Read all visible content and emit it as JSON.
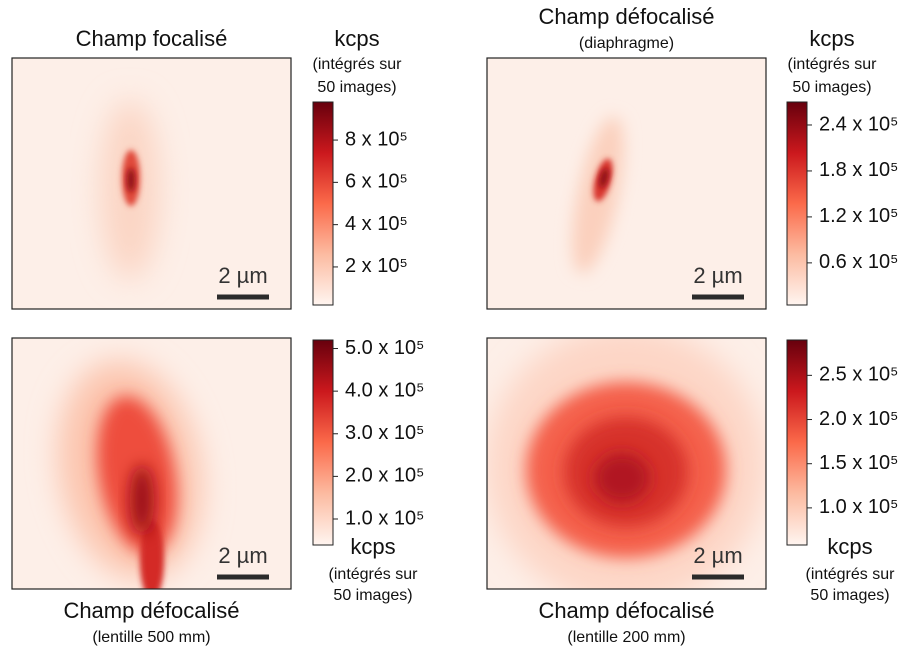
{
  "chart_data": [
    {
      "type": "heatmap",
      "title": "Champ focalisé",
      "colorbar_label": [
        "kcps",
        "(intégrés sur",
        "50 images)"
      ],
      "scale_bar": "2 µm",
      "colorbar_lim": [
        20000,
        980000
      ],
      "colorbar_ticks": [
        {
          "value": 200000,
          "label": "2 x 10⁵"
        },
        {
          "value": 400000,
          "label": "4 x 10⁵"
        },
        {
          "value": 600000,
          "label": "6 x 10⁵"
        },
        {
          "value": 800000,
          "label": "8 x 10⁵"
        }
      ]
    },
    {
      "type": "heatmap",
      "title": "Champ défocalisé",
      "subtitle": "(diaphragme)",
      "colorbar_label": [
        "kcps",
        "(intégrés sur",
        "50 images)"
      ],
      "scale_bar": "2 µm",
      "colorbar_lim": [
        5000,
        270000
      ],
      "colorbar_ticks": [
        {
          "value": 60000,
          "label": "0.6 x 10⁵"
        },
        {
          "value": 120000,
          "label": "1.2 x 10⁵"
        },
        {
          "value": 180000,
          "label": "1.8 x 10⁵"
        },
        {
          "value": 240000,
          "label": "2.4 x 10⁵"
        }
      ]
    },
    {
      "type": "heatmap",
      "title": "Champ défocalisé",
      "subtitle": "(lentille 500 mm)",
      "colorbar_label": [
        "kcps",
        "(intégrés sur",
        "50 images)"
      ],
      "scale_bar": "2 µm",
      "colorbar_lim": [
        39000,
        520000
      ],
      "colorbar_ticks": [
        {
          "value": 100000,
          "label": "1.0 x 10⁵"
        },
        {
          "value": 200000,
          "label": "2.0 x 10⁵"
        },
        {
          "value": 300000,
          "label": "3.0 x 10⁵"
        },
        {
          "value": 400000,
          "label": "4.0 x 10⁵"
        },
        {
          "value": 500000,
          "label": "5.0 x 10⁵"
        }
      ]
    },
    {
      "type": "heatmap",
      "title": "Champ défocalisé",
      "subtitle": "(lentille 200 mm)",
      "colorbar_label": [
        "kcps",
        "(intégrés sur",
        "50 images)"
      ],
      "scale_bar": "2 µm",
      "colorbar_lim": [
        58000,
        290000
      ],
      "colorbar_ticks": [
        {
          "value": 100000,
          "label": "1.0 x 10⁵"
        },
        {
          "value": 150000,
          "label": "1.5 x 10⁵"
        },
        {
          "value": 200000,
          "label": "2.0 x 10⁵"
        },
        {
          "value": 250000,
          "label": "2.5 x 10⁵"
        }
      ]
    }
  ]
}
